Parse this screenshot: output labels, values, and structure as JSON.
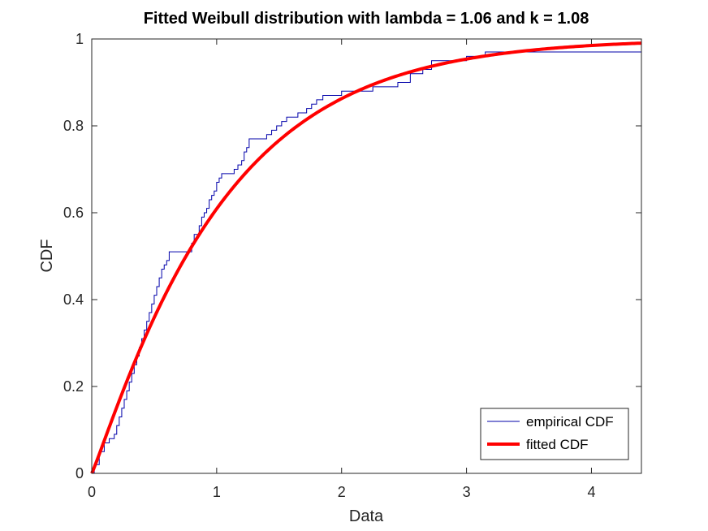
{
  "chart_data": {
    "type": "line",
    "title": "Fitted Weibull distribution with lambda = 1.06 and k = 1.08",
    "xlabel": "Data",
    "ylabel": "CDF",
    "xlim": [
      0,
      4.4
    ],
    "ylim": [
      0,
      1
    ],
    "xticks": [
      0,
      1,
      2,
      3,
      4
    ],
    "xtick_labels": [
      "0",
      "1",
      "2",
      "3",
      "4"
    ],
    "yticks": [
      0,
      0.2,
      0.4,
      0.6,
      0.8,
      1
    ],
    "ytick_labels": [
      "0",
      "0.2",
      "0.4",
      "0.6",
      "0.8",
      "1"
    ],
    "grid": false,
    "legend_position": "bottom-right",
    "series": [
      {
        "name": "empirical CDF",
        "style": "stairs",
        "color": "#0000aa",
        "x": [
          0.0,
          0.02,
          0.06,
          0.1,
          0.14,
          0.18,
          0.2,
          0.22,
          0.24,
          0.26,
          0.28,
          0.3,
          0.32,
          0.34,
          0.36,
          0.38,
          0.4,
          0.42,
          0.44,
          0.46,
          0.48,
          0.5,
          0.52,
          0.54,
          0.56,
          0.58,
          0.6,
          0.62,
          0.64,
          0.66,
          0.68,
          0.7,
          0.8,
          0.82,
          0.86,
          0.88,
          0.9,
          0.92,
          0.94,
          0.96,
          0.98,
          1.0,
          1.02,
          1.04,
          1.06,
          1.1,
          1.14,
          1.17,
          1.2,
          1.22,
          1.24,
          1.26,
          1.3,
          1.4,
          1.44,
          1.48,
          1.52,
          1.56,
          1.6,
          1.65,
          1.72,
          1.76,
          1.8,
          1.85,
          1.9,
          1.95,
          2.0,
          2.1,
          2.25,
          2.35,
          2.45,
          2.55,
          2.65,
          2.72,
          2.85,
          3.0,
          3.1,
          3.15,
          3.3,
          3.5,
          3.7,
          3.9,
          4.0,
          4.4
        ],
        "y": [
          0.0,
          0.02,
          0.05,
          0.07,
          0.08,
          0.09,
          0.11,
          0.13,
          0.15,
          0.17,
          0.19,
          0.21,
          0.23,
          0.25,
          0.27,
          0.29,
          0.31,
          0.33,
          0.35,
          0.37,
          0.39,
          0.41,
          0.43,
          0.45,
          0.47,
          0.48,
          0.49,
          0.51,
          0.51,
          0.51,
          0.51,
          0.51,
          0.53,
          0.55,
          0.57,
          0.59,
          0.6,
          0.61,
          0.63,
          0.64,
          0.65,
          0.67,
          0.68,
          0.69,
          0.69,
          0.69,
          0.7,
          0.71,
          0.72,
          0.74,
          0.75,
          0.77,
          0.77,
          0.78,
          0.79,
          0.8,
          0.81,
          0.82,
          0.82,
          0.83,
          0.84,
          0.85,
          0.86,
          0.87,
          0.87,
          0.87,
          0.88,
          0.88,
          0.89,
          0.89,
          0.9,
          0.92,
          0.93,
          0.95,
          0.95,
          0.96,
          0.96,
          0.97,
          0.97,
          0.97,
          0.97,
          0.97,
          0.97,
          0.97
        ]
      },
      {
        "name": "fitted CDF",
        "style": "weibull",
        "color": "#ff0000",
        "lambda": 1.06,
        "k": 1.08,
        "x_range": [
          0,
          4.4
        ]
      }
    ]
  }
}
